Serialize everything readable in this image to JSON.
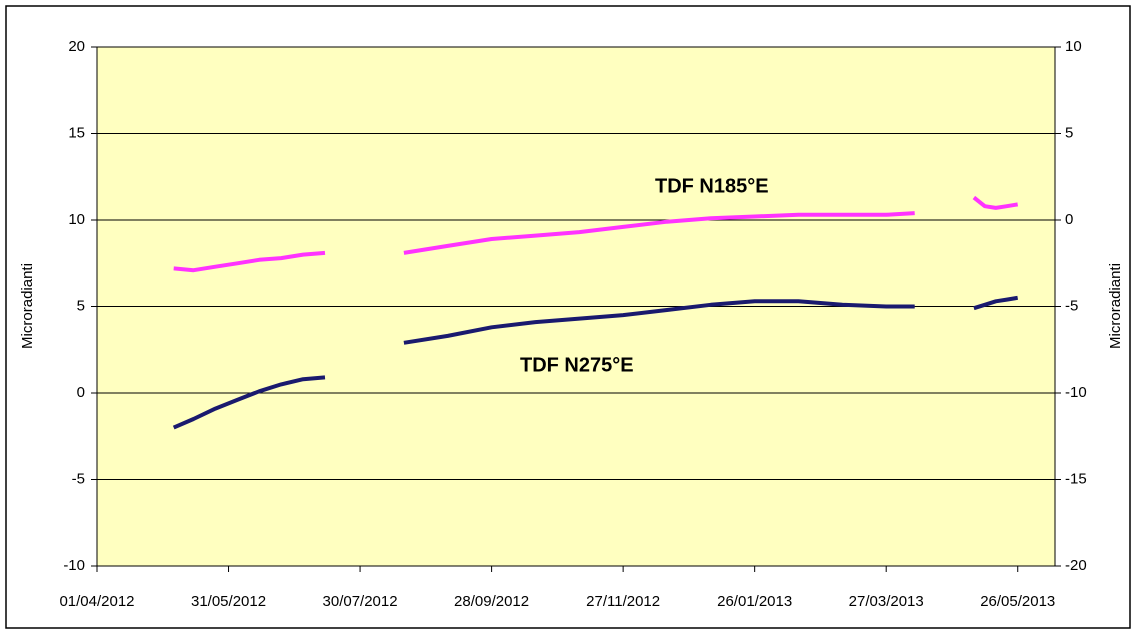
{
  "chart_data": {
    "type": "line",
    "x": [
      "06/05/2012",
      "15/05/2012",
      "25/05/2012",
      "04/06/2012",
      "14/06/2012",
      "24/06/2012",
      "04/07/2012",
      "14/07/2012",
      "26/07/2012",
      "19/08/2012",
      "08/09/2012",
      "28/09/2012",
      "18/10/2012",
      "07/11/2012",
      "27/11/2012",
      "17/12/2012",
      "06/01/2013",
      "26/01/2013",
      "15/02/2013",
      "07/03/2013",
      "27/03/2013",
      "09/04/2013",
      "20/04/2013",
      "06/05/2013",
      "11/05/2013",
      "16/05/2013",
      "21/05/2013",
      "26/05/2013"
    ],
    "series": [
      {
        "name": "TDF N185°E",
        "color": "#ff33ff",
        "values": [
          7.2,
          7.1,
          7.3,
          7.5,
          7.7,
          7.8,
          8.0,
          8.1,
          null,
          8.1,
          8.5,
          8.9,
          9.1,
          9.3,
          9.6,
          9.9,
          10.1,
          10.2,
          10.3,
          10.3,
          10.3,
          10.4,
          null,
          11.3,
          10.8,
          10.7,
          10.8,
          10.9
        ]
      },
      {
        "name": "TDF N275°E",
        "color": "#1a1a6e",
        "values": [
          -2.0,
          -1.5,
          -0.9,
          -0.4,
          0.1,
          0.5,
          0.8,
          0.9,
          null,
          2.9,
          3.3,
          3.8,
          4.1,
          4.3,
          4.5,
          4.8,
          5.1,
          5.3,
          5.3,
          5.1,
          5.0,
          5.0,
          null,
          4.9,
          5.1,
          5.3,
          5.4,
          5.5
        ]
      }
    ],
    "xlim": [
      "01/04/2012",
      "12/06/2013"
    ],
    "xticks": [
      "01/04/2012",
      "31/05/2012",
      "30/07/2012",
      "28/09/2012",
      "27/11/2012",
      "26/01/2013",
      "27/03/2013",
      "26/05/2013"
    ],
    "ylim": [
      -10,
      20
    ],
    "yticks": [
      -10,
      -5,
      0,
      5,
      10,
      15,
      20
    ],
    "y2lim": [
      -20,
      10
    ],
    "y2ticks": [
      -20,
      -15,
      -10,
      -5,
      0,
      5,
      10
    ],
    "ylabel": "Microradianti",
    "y2label": "Microradianti",
    "grid": true,
    "background": "#ffffc0"
  }
}
